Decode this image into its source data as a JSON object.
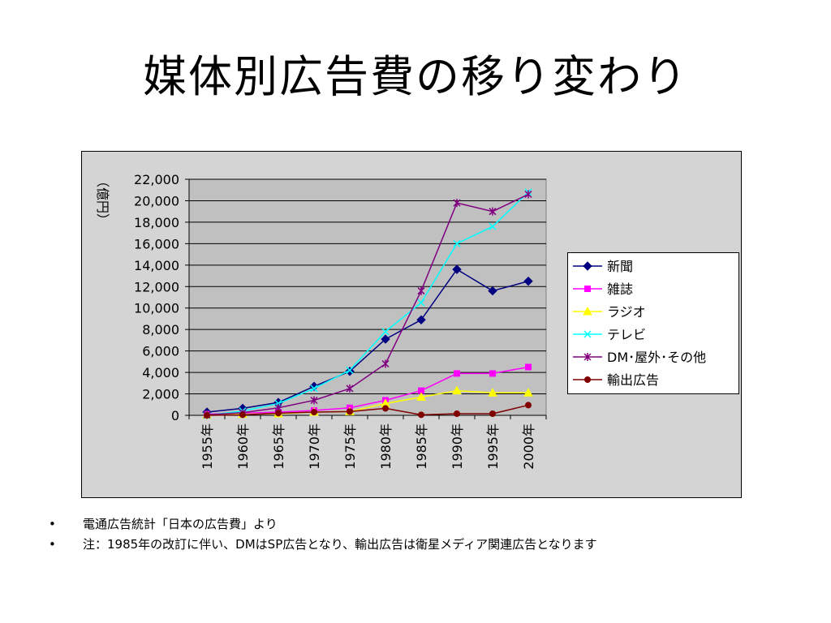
{
  "slide": {
    "title": "媒体別広告費の移り変わり",
    "notes": [
      {
        "bullet": "•",
        "text": "電通広告統計「日本の広告費」より"
      },
      {
        "bullet": "•",
        "text": "注：1985年の改訂に伴い、DMはSP広告となり、輸出広告は衛星メディア関連広告となります"
      }
    ]
  },
  "chart_data": {
    "type": "line",
    "ylabel": "（億円）",
    "xlabel": "",
    "ylim": [
      0,
      22000
    ],
    "yticks": [
      "22,000",
      "20,000",
      "18,000",
      "16,000",
      "14,000",
      "12,000",
      "10,000",
      "8,000",
      "6,000",
      "4,000",
      "2,000",
      "0"
    ],
    "categories": [
      "1955年",
      "1960年",
      "1965年",
      "1970年",
      "1975年",
      "1980年",
      "1985年",
      "1990年",
      "1995年",
      "2000年"
    ],
    "grid": true,
    "legend_position": "right",
    "series": [
      {
        "name": "新聞",
        "color": "#000080",
        "marker": "diamond",
        "values": [
          300,
          650,
          1200,
          2700,
          4100,
          7100,
          8900,
          13600,
          11600,
          12500
        ]
      },
      {
        "name": "雑誌",
        "color": "#ff00ff",
        "marker": "square",
        "values": [
          100,
          200,
          300,
          450,
          700,
          1400,
          2300,
          3900,
          3900,
          4500
        ]
      },
      {
        "name": "ラジオ",
        "color": "#ffff00",
        "marker": "triangle",
        "values": [
          30,
          100,
          150,
          300,
          350,
          1100,
          1700,
          2300,
          2100,
          2100
        ]
      },
      {
        "name": "テレビ",
        "color": "#00ffff",
        "marker": "x",
        "values": [
          0,
          400,
          1100,
          2500,
          4200,
          7800,
          10500,
          16000,
          17600,
          20800
        ]
      },
      {
        "name": "DM･屋外･その他",
        "color": "#800080",
        "marker": "star",
        "values": [
          50,
          250,
          700,
          1400,
          2500,
          4800,
          11600,
          19800,
          19000,
          20600
        ]
      },
      {
        "name": "輸出広告",
        "color": "#800000",
        "marker": "circle",
        "values": [
          0,
          50,
          200,
          300,
          350,
          650,
          50,
          150,
          150,
          950
        ]
      }
    ]
  }
}
